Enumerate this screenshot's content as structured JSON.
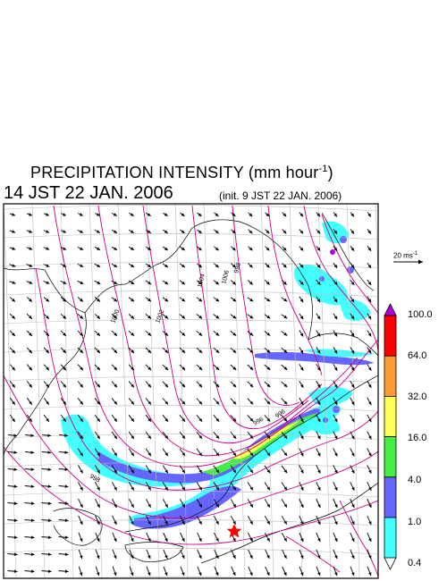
{
  "header": {
    "title": "PRECIPITATION INTENSITY (mm hour",
    "title_unit_exp": "-1",
    "title_close": ")",
    "valid_time": "14 JST 22 JAN. 2006",
    "init_time": "(init. 9 JST 22 JAN. 2006)"
  },
  "vector_reference": {
    "label": "20 ms",
    "exp": "-1"
  },
  "colorbar": {
    "levels": [
      "100.0",
      "64.0",
      "32.0",
      "16.0",
      "4.0",
      "1.0",
      "0.4"
    ],
    "colors": [
      "#aa00dd",
      "#ff0000",
      "#ff9933",
      "#ffff55",
      "#44ee44",
      "#6666ff",
      "#44ffff",
      "#ffffff"
    ]
  },
  "contour_labels": [
    "1000",
    "1002",
    "1004",
    "1006",
    "998",
    "996",
    "996",
    "998"
  ],
  "marker": {
    "color": "#ff0000",
    "icon": "star-icon"
  },
  "colors": {
    "isobar": "#cc0088",
    "wind_arrow": "#000000",
    "grid": "#bbbbbb"
  }
}
